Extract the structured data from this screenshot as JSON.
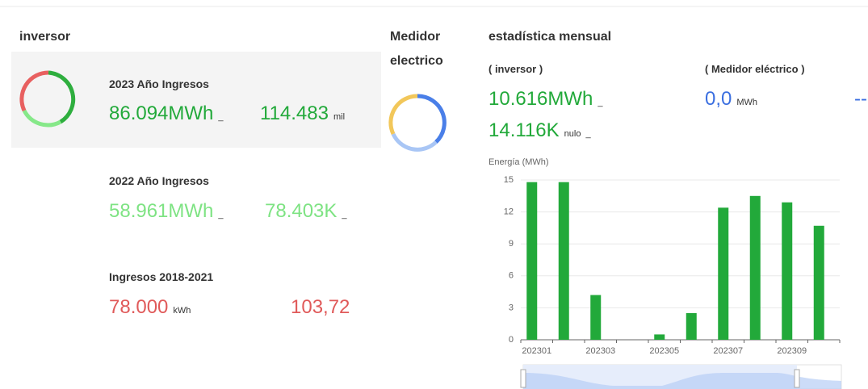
{
  "inverter": {
    "title": "inversor",
    "items": [
      {
        "label": "2023 Año Ingresos",
        "energy": "86.094MWh",
        "energy_suffix": "_",
        "income": "114.483",
        "income_unit": "mil"
      },
      {
        "label": "2022 Año Ingresos",
        "energy": "58.961MWh",
        "energy_suffix": "_",
        "income": "78.403K",
        "income_suffix": "_"
      },
      {
        "label": "Ingresos 2018-2021",
        "energy": "78.000",
        "energy_unit": "kWh",
        "income": "103,72"
      }
    ]
  },
  "meter": {
    "title": [
      "Medidor",
      "electrico"
    ]
  },
  "monthly": {
    "title": "estadística mensual",
    "inverter_label": "( inversor )",
    "meter_label": "( Medidor eléctrico )",
    "inverter_energy": "10.616MWh",
    "inverter_energy_suffix": "_",
    "inverter_income": "14.116K",
    "inverter_income_unit": "nulo",
    "inverter_income_suffix": "_",
    "meter_energy": "0,0",
    "meter_energy_unit": "MWh",
    "meter_income": "--"
  },
  "chart_data": {
    "type": "bar",
    "y_label": "Energía (MWh)",
    "categories": [
      "202301",
      null,
      "202303",
      null,
      "202305",
      null,
      "202307",
      null,
      "202309",
      null
    ],
    "values": [
      14.8,
      14.8,
      4.2,
      0,
      0.5,
      2.5,
      12.4,
      13.5,
      12.9,
      10.7
    ],
    "color": "#22a93a",
    "ylim": [
      0,
      15
    ],
    "yticks": [
      0,
      3,
      6,
      9,
      12,
      15
    ],
    "grid": true
  }
}
